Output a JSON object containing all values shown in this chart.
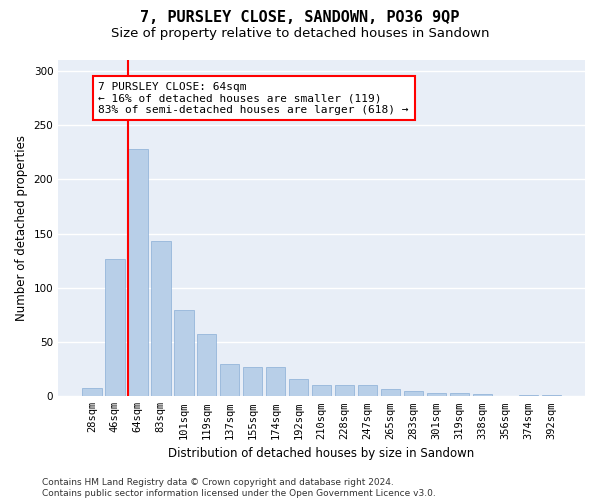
{
  "title": "7, PURSLEY CLOSE, SANDOWN, PO36 9QP",
  "subtitle": "Size of property relative to detached houses in Sandown",
  "xlabel": "Distribution of detached houses by size in Sandown",
  "ylabel": "Number of detached properties",
  "categories": [
    "28sqm",
    "46sqm",
    "64sqm",
    "83sqm",
    "101sqm",
    "119sqm",
    "137sqm",
    "155sqm",
    "174sqm",
    "192sqm",
    "210sqm",
    "228sqm",
    "247sqm",
    "265sqm",
    "283sqm",
    "301sqm",
    "319sqm",
    "338sqm",
    "356sqm",
    "374sqm",
    "392sqm"
  ],
  "values": [
    8,
    127,
    228,
    143,
    80,
    57,
    30,
    27,
    27,
    16,
    10,
    10,
    10,
    7,
    5,
    3,
    3,
    2,
    0,
    1,
    1
  ],
  "bar_color": "#b8cfe8",
  "bar_edge_color": "#8aaed6",
  "annotation_text_line1": "7 PURSLEY CLOSE: 64sqm",
  "annotation_text_line2": "← 16% of detached houses are smaller (119)",
  "annotation_text_line3": "83% of semi-detached houses are larger (618) →",
  "annotation_box_color": "white",
  "annotation_box_edge_color": "red",
  "vline_color": "red",
  "vline_x_index": 2,
  "ylim": [
    0,
    310
  ],
  "yticks": [
    0,
    50,
    100,
    150,
    200,
    250,
    300
  ],
  "bg_color": "#e8eef7",
  "grid_color": "white",
  "footer": "Contains HM Land Registry data © Crown copyright and database right 2024.\nContains public sector information licensed under the Open Government Licence v3.0.",
  "title_fontsize": 11,
  "subtitle_fontsize": 9.5,
  "label_fontsize": 8.5,
  "tick_fontsize": 7.5,
  "footer_fontsize": 6.5,
  "annotation_fontsize": 8
}
